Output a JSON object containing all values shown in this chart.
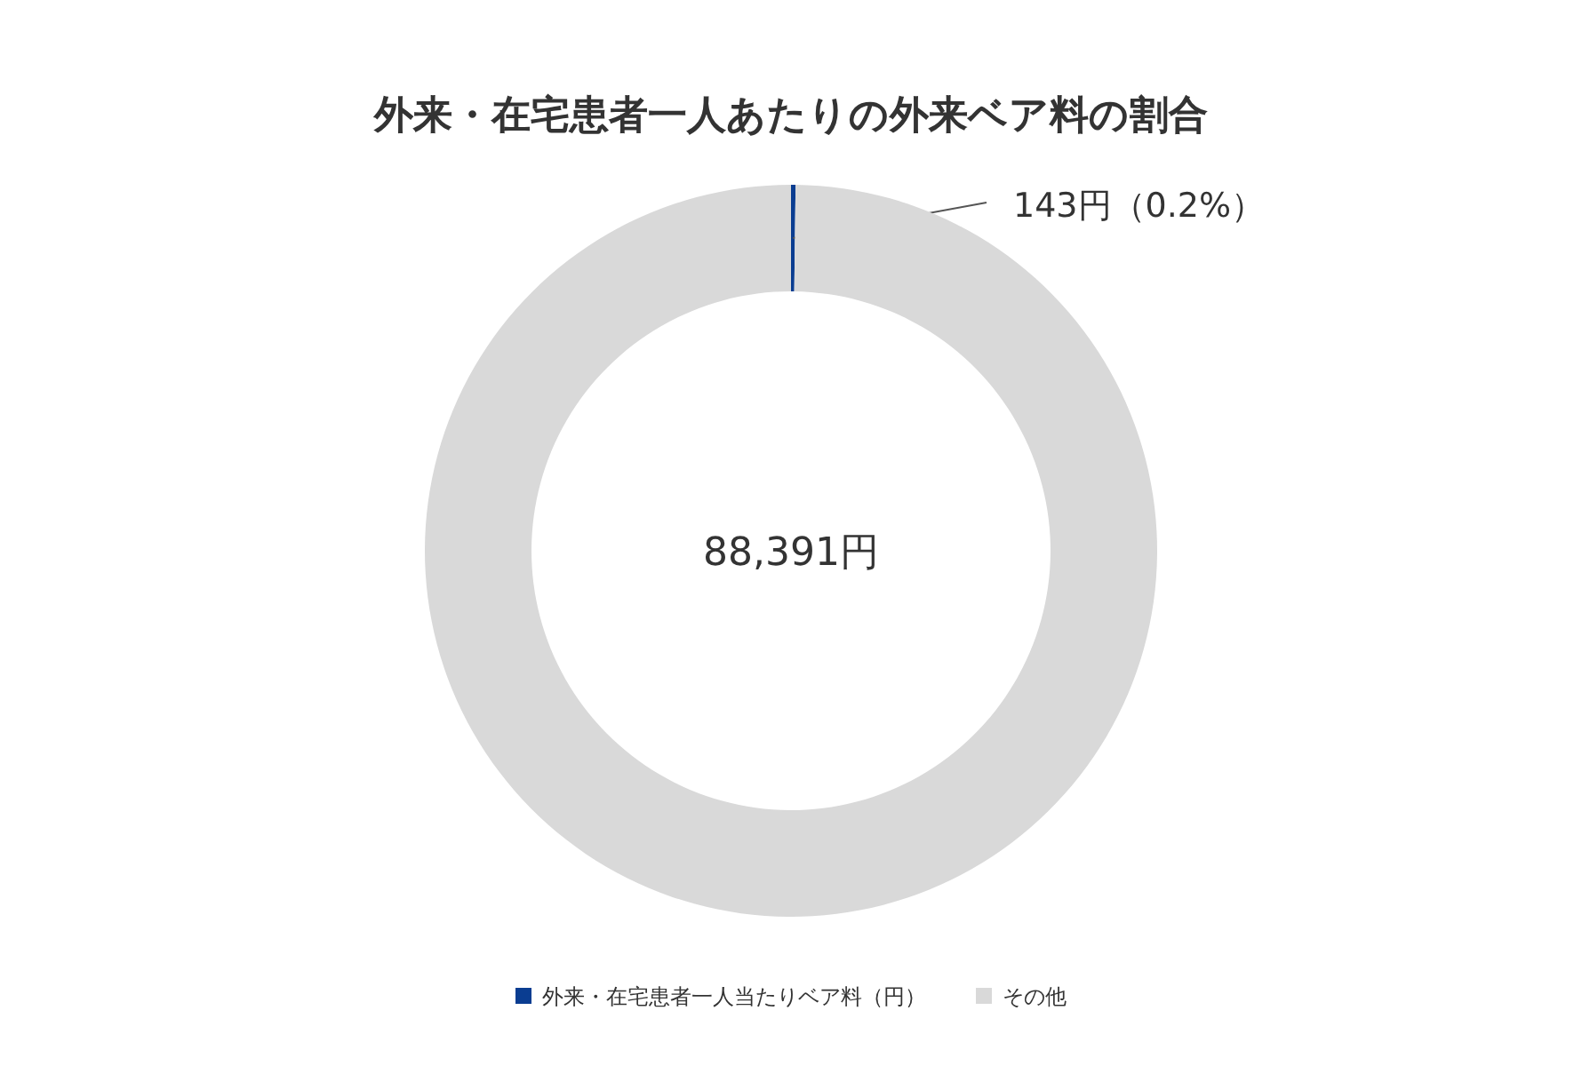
{
  "chart_data": {
    "type": "donut",
    "title": "外来・在宅患者一人あたりの外来ベア料の割合",
    "categories": [
      "外来・在宅患者一人当たりベア料（円）",
      "その他"
    ],
    "values": [
      0.2,
      99.8
    ],
    "colors": [
      "#0a3d91",
      "#d9d9d9"
    ],
    "value_labels": [
      "143円（0.2%）",
      null
    ],
    "annotations": [
      "88,391円"
    ],
    "legend": "bottom"
  }
}
